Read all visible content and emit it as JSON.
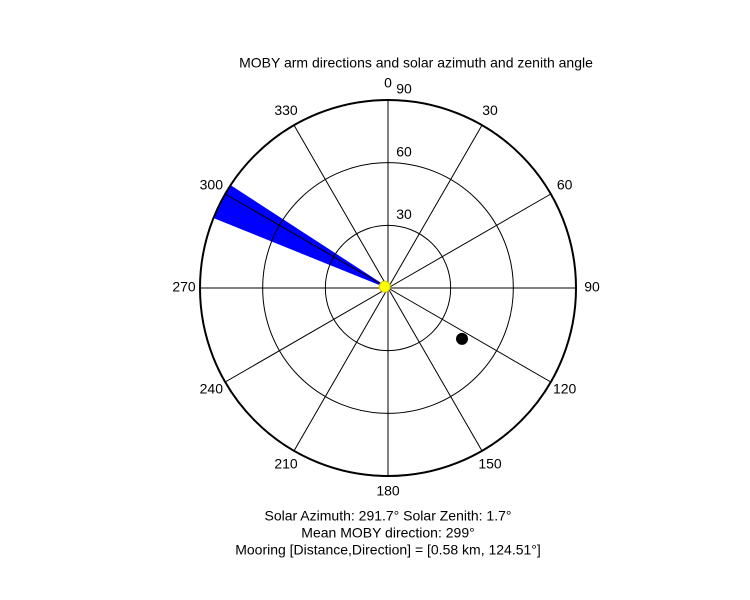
{
  "chart_data": {
    "type": "polar",
    "title": "MOBY arm directions and solar azimuth and zenith angle",
    "rlim": [
      0,
      90
    ],
    "rticks": [
      30,
      60,
      90
    ],
    "thetaticks": [
      0,
      30,
      60,
      90,
      120,
      150,
      180,
      210,
      240,
      270,
      300,
      330
    ],
    "wedge": {
      "theta": [
        292,
        303
      ],
      "r": 90,
      "color": "#0000ff"
    },
    "points": [
      {
        "theta": 124.51,
        "r": 43,
        "color": "#000000"
      },
      {
        "theta": 291.7,
        "r": 1.7,
        "color": "#ffff00"
      }
    ],
    "notes": [
      "Solar Azimuth: 291.7° Solar Zenith: 1.7°",
      "Mean MOBY direction: 299°",
      "Mooring [Distance,Direction] = [0.58 km, 124.51°]"
    ]
  }
}
